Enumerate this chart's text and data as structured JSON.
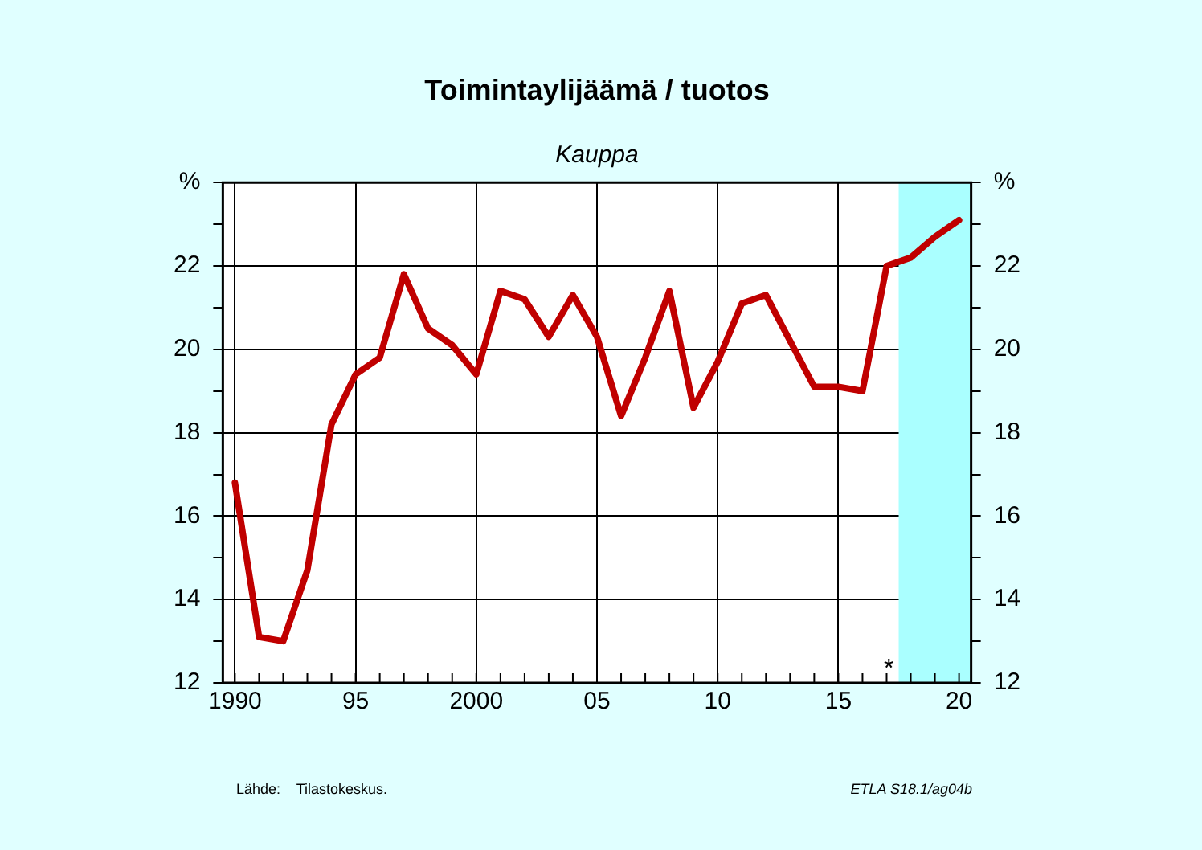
{
  "chart_data": {
    "type": "line",
    "title": "Toimintaylijäämä / tuotos",
    "subtitle": "Kauppa",
    "x": [
      1990,
      1991,
      1992,
      1993,
      1994,
      1995,
      1996,
      1997,
      1998,
      1999,
      2000,
      2001,
      2002,
      2003,
      2004,
      2005,
      2006,
      2007,
      2008,
      2009,
      2010,
      2011,
      2012,
      2013,
      2014,
      2015,
      2016,
      2017,
      2018,
      2019,
      2020
    ],
    "series": [
      {
        "color": "#c00000",
        "values": [
          16.8,
          13.1,
          13.0,
          14.7,
          18.2,
          19.4,
          19.8,
          21.8,
          20.5,
          20.1,
          19.4,
          21.4,
          21.2,
          20.3,
          21.3,
          20.3,
          18.4,
          19.8,
          21.4,
          18.6,
          19.7,
          21.1,
          21.3,
          20.2,
          19.1,
          19.1,
          19.0,
          22.0,
          22.2,
          22.7,
          23.1
        ]
      }
    ],
    "xlim": [
      1989.5,
      2020.5
    ],
    "xticks": [
      {
        "value": 1990,
        "label": "1990"
      },
      {
        "value": 1995,
        "label": "95"
      },
      {
        "value": 2000,
        "label": "2000"
      },
      {
        "value": 2005,
        "label": "05"
      },
      {
        "value": 2010,
        "label": "10"
      },
      {
        "value": 2015,
        "label": "15"
      },
      {
        "value": 2020,
        "label": "20"
      }
    ],
    "ylim": [
      12,
      24
    ],
    "yticks": [
      12,
      {
        "value": 13,
        "label": null
      },
      14,
      {
        "value": 15,
        "label": null
      },
      16,
      {
        "value": 17,
        "label": null
      },
      18,
      {
        "value": 19,
        "label": null
      },
      20,
      {
        "value": 21,
        "label": null
      },
      22,
      {
        "value": 23,
        "label": null
      },
      {
        "value": 24,
        "label": "%"
      }
    ],
    "y2lim": [
      12,
      24
    ],
    "y2ticks": [
      12,
      {
        "value": 13,
        "label": null
      },
      14,
      {
        "value": 15,
        "label": null
      },
      16,
      {
        "value": 17,
        "label": null
      },
      18,
      {
        "value": 19,
        "label": null
      },
      20,
      {
        "value": 21,
        "label": null
      },
      22,
      {
        "value": 23,
        "label": null
      },
      {
        "value": 24,
        "label": "%"
      }
    ],
    "bands": [
      {
        "axis": "x",
        "from": 2017.5,
        "to": 2020.5,
        "color": "#aaffff"
      }
    ],
    "annotations": [
      "*",
      "Lähde:    Tilastokeskus.",
      "ETLA S18.1/ag04b"
    ],
    "grid": true,
    "legend": false,
    "marker": "none",
    "line_style": "solid"
  }
}
